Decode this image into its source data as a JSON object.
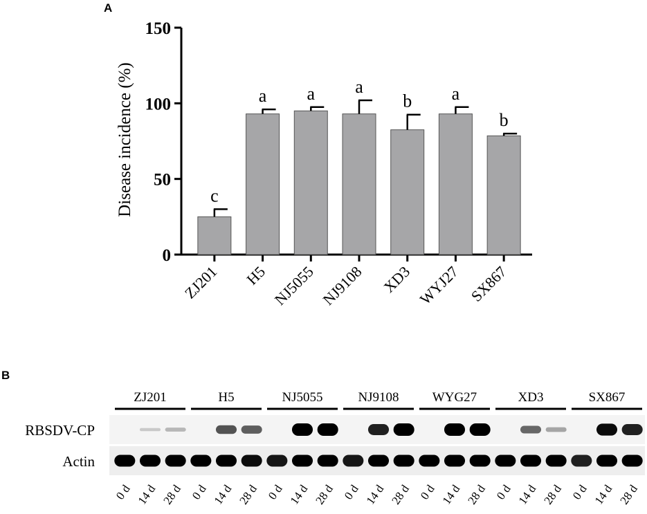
{
  "panel_a": {
    "letter": "A",
    "chart_data": {
      "type": "bar",
      "title": "",
      "xlabel": "",
      "ylabel": "Disease incidence (%)",
      "ylim": [
        0,
        150
      ],
      "yticks": [
        0,
        50,
        100,
        150
      ],
      "grid": false,
      "bar_color": "#a6a6a8",
      "categories": [
        "ZJ201",
        "H5",
        "NJ5055",
        "NJ9108",
        "XD3",
        "WYJ27",
        "SX867"
      ],
      "values": [
        25,
        93,
        95,
        93,
        82.5,
        93,
        78.5
      ],
      "errors": [
        5,
        3,
        2.5,
        9,
        10,
        4.5,
        1.5
      ],
      "significance": [
        "c",
        "a",
        "a",
        "a",
        "b",
        "a",
        "b"
      ]
    }
  },
  "panel_b": {
    "letter": "B",
    "groups": [
      "ZJ201",
      "H5",
      "NJ5055",
      "NJ9108",
      "WYG27",
      "XD3",
      "SX867"
    ],
    "rows": [
      "RBSDV-CP",
      "Actin"
    ],
    "timepoints": [
      "0 d",
      "14 d",
      "28 d"
    ],
    "blot_intensity": {
      "RBSDV-CP": [
        [
          0,
          0.03,
          0.12
        ],
        [
          0,
          0.6,
          0.55
        ],
        [
          0,
          1.0,
          1.0
        ],
        [
          0,
          0.85,
          1.0
        ],
        [
          0,
          1.0,
          1.0
        ],
        [
          0,
          0.5,
          0.2
        ],
        [
          0,
          0.95,
          0.85
        ]
      ],
      "Actin": [
        [
          1,
          1,
          1
        ],
        [
          1,
          1,
          0.95
        ],
        [
          0.9,
          1,
          1
        ],
        [
          0.9,
          1,
          1
        ],
        [
          1,
          1,
          1
        ],
        [
          1,
          1,
          1
        ],
        [
          0.85,
          1,
          1
        ]
      ]
    }
  }
}
